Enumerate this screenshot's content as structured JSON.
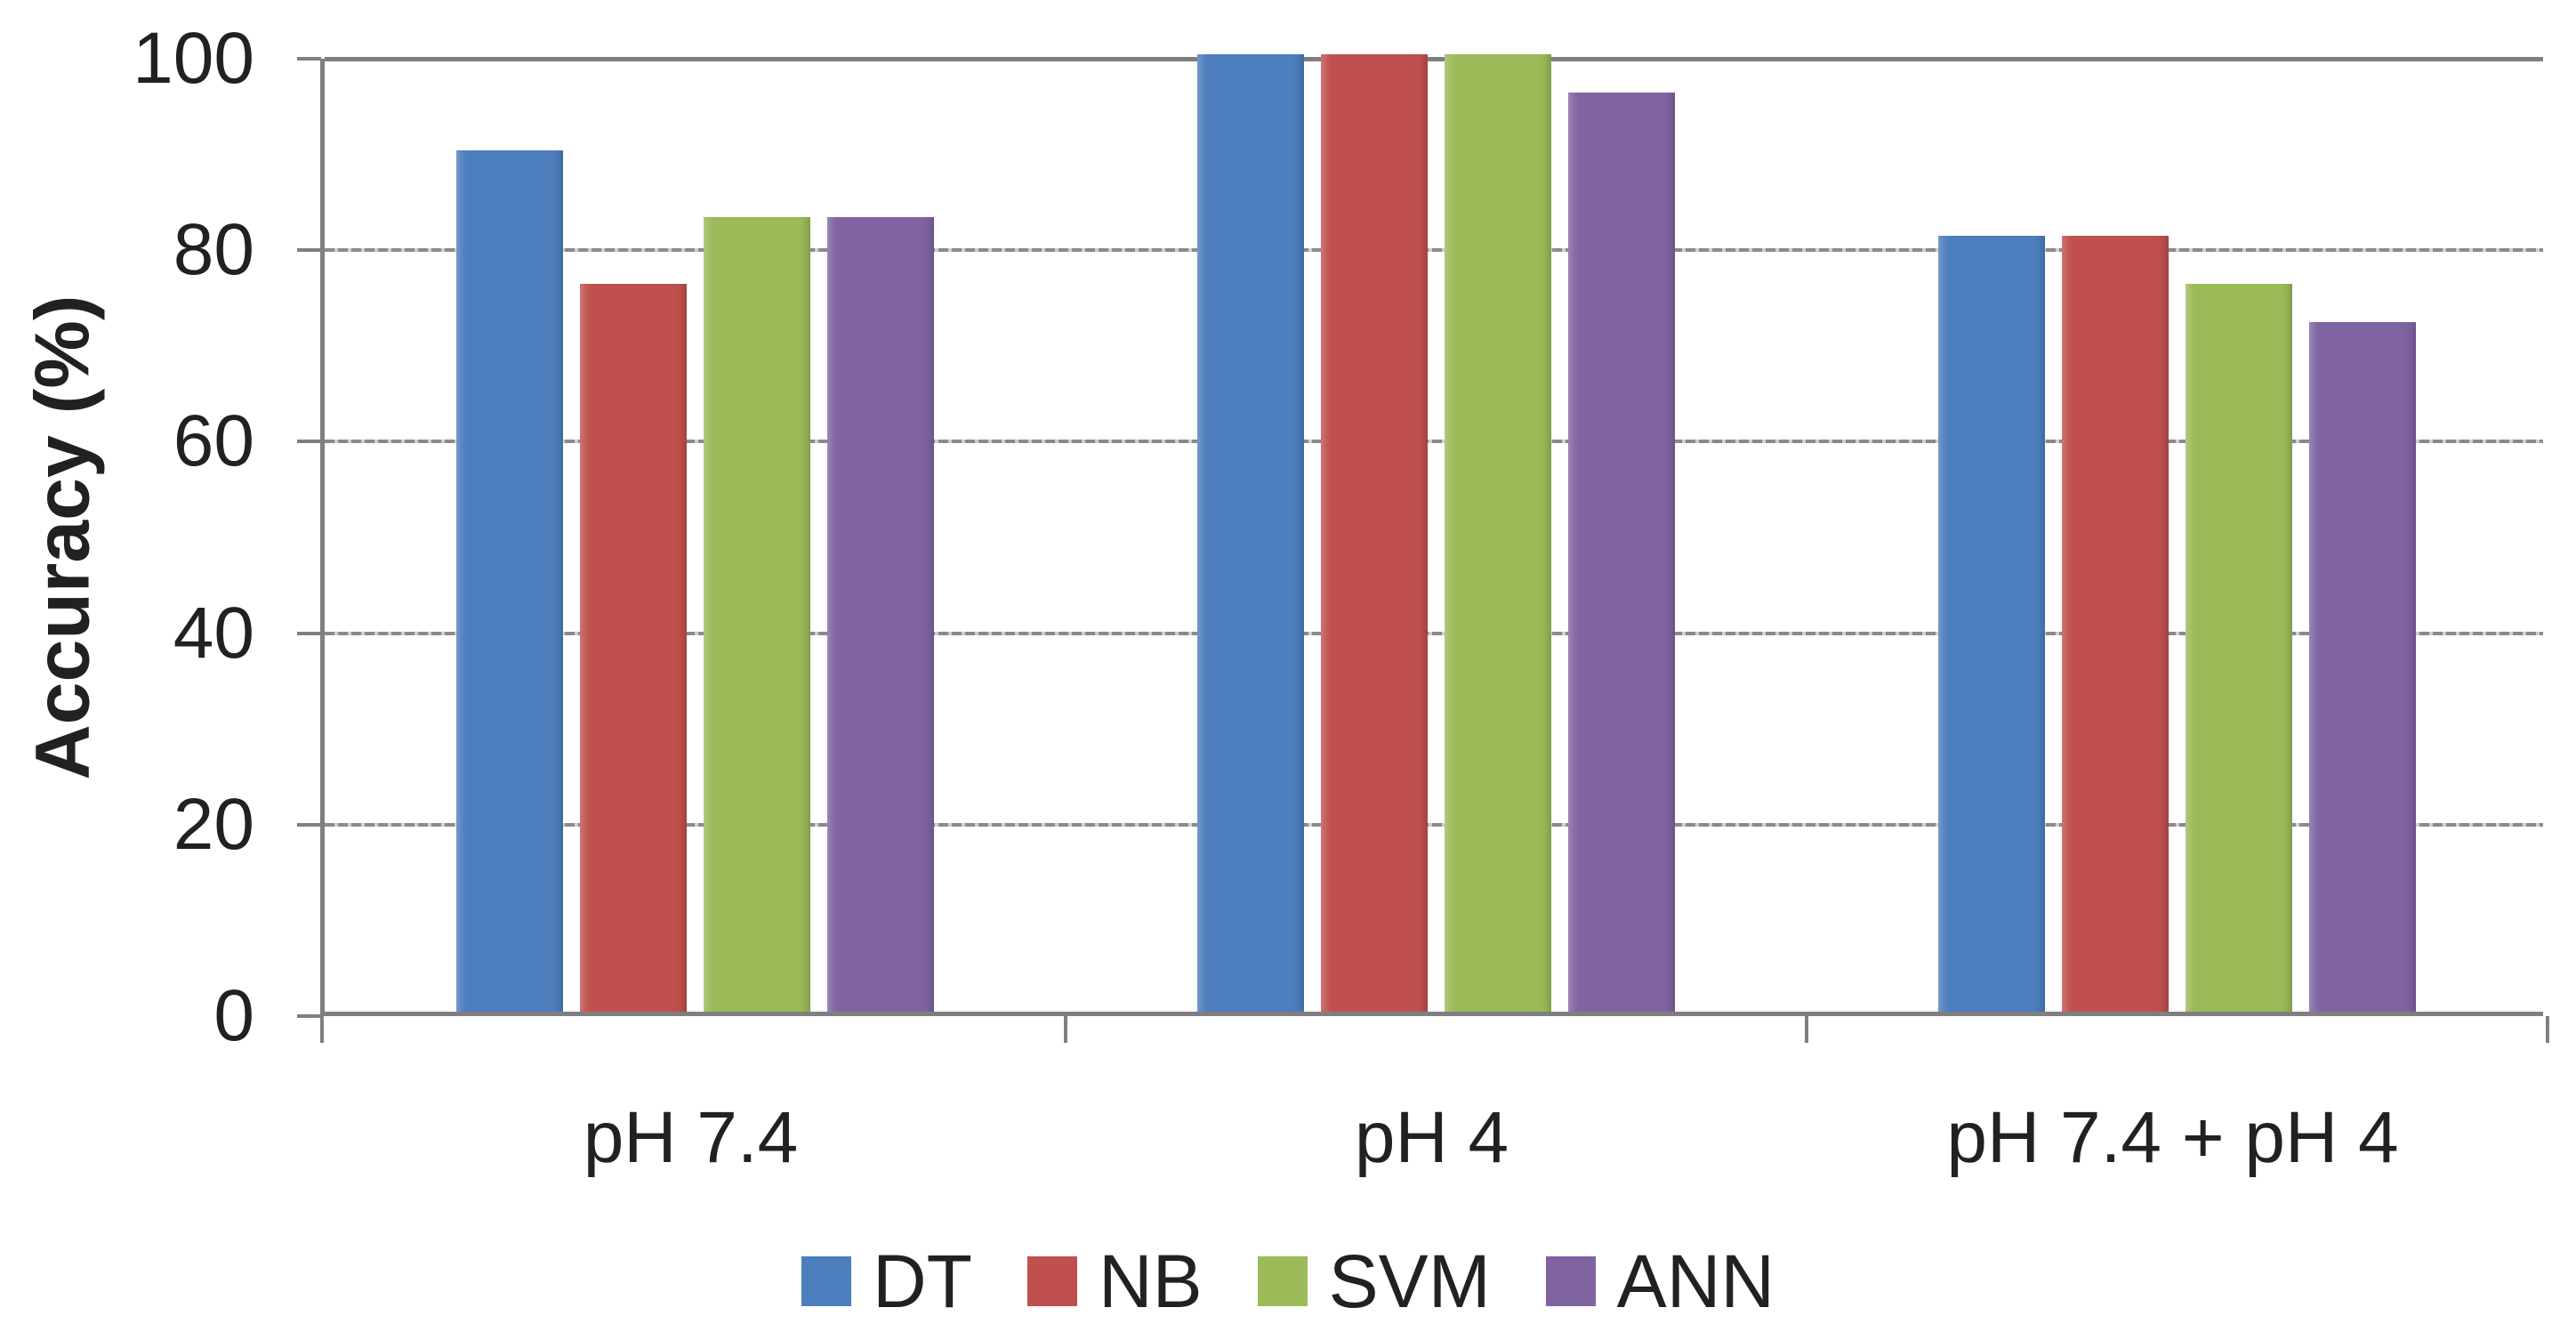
{
  "chart_data": {
    "type": "bar",
    "title": "",
    "xlabel": "",
    "ylabel": "Accuracy (%)",
    "categories": [
      "pH 7.4",
      "pH 4",
      "pH 7.4 + pH 4"
    ],
    "series": [
      {
        "name": "DT",
        "color": "#4d7ebd",
        "values": [
          90,
          100,
          81
        ]
      },
      {
        "name": "NB",
        "color": "#c0504d",
        "values": [
          76,
          100,
          81
        ]
      },
      {
        "name": "SVM",
        "color": "#9bbb59",
        "values": [
          83,
          100,
          76
        ]
      },
      {
        "name": "ANN",
        "color": "#8064a2",
        "values": [
          83,
          96,
          72
        ]
      }
    ],
    "ylim": [
      0,
      100
    ],
    "yticks": [
      0,
      20,
      40,
      60,
      80,
      100
    ],
    "grid": true,
    "legend_position": "bottom",
    "legend_labels": [
      "DT",
      "NB",
      "SVM",
      "ANN"
    ]
  },
  "colors": {
    "background": "#ffffff",
    "text": "#212121",
    "axis": "#7f7f7f",
    "gridline": "#8a8a8a"
  }
}
